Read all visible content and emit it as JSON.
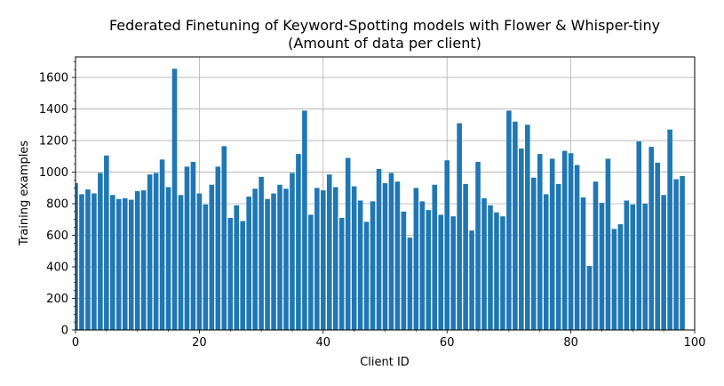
{
  "chart_data": {
    "type": "bar",
    "title_line1": "Federated Finetuning of Keyword-Spotting models with Flower & Whisper-tiny",
    "title_line2": "(Amount of data per client)",
    "xlabel": "Client ID",
    "ylabel": "Training examples",
    "xlim": [
      0,
      100
    ],
    "ylim": [
      0,
      1730
    ],
    "xticks": [
      0,
      20,
      40,
      60,
      80,
      100
    ],
    "yticks": [
      0,
      200,
      400,
      600,
      800,
      1000,
      1200,
      1400,
      1600
    ],
    "grid": true,
    "bar_color": "#1f77b4",
    "x": [
      0,
      1,
      2,
      3,
      4,
      5,
      6,
      7,
      8,
      9,
      10,
      11,
      12,
      13,
      14,
      15,
      16,
      17,
      18,
      19,
      20,
      21,
      22,
      23,
      24,
      25,
      26,
      27,
      28,
      29,
      30,
      31,
      32,
      33,
      34,
      35,
      36,
      37,
      38,
      39,
      40,
      41,
      42,
      43,
      44,
      45,
      46,
      47,
      48,
      49,
      50,
      51,
      52,
      53,
      54,
      55,
      56,
      57,
      58,
      59,
      60,
      61,
      62,
      63,
      64,
      65,
      66,
      67,
      68,
      69,
      70,
      71,
      72,
      73,
      74,
      75,
      76,
      77,
      78,
      79,
      80,
      81,
      82,
      83,
      84,
      85,
      86,
      87,
      88,
      89,
      90,
      91,
      92,
      93,
      94,
      95,
      96,
      97,
      98
    ],
    "values": [
      930,
      860,
      890,
      865,
      995,
      1105,
      855,
      830,
      835,
      825,
      880,
      885,
      985,
      995,
      1080,
      905,
      1655,
      855,
      1035,
      1065,
      865,
      795,
      920,
      1035,
      1165,
      710,
      790,
      690,
      845,
      895,
      970,
      830,
      865,
      920,
      895,
      995,
      1115,
      1390,
      730,
      900,
      885,
      985,
      905,
      710,
      1090,
      910,
      820,
      685,
      815,
      1020,
      930,
      995,
      940,
      750,
      585,
      900,
      815,
      760,
      920,
      730,
      1075,
      720,
      1310,
      925,
      630,
      1065,
      835,
      790,
      745,
      720,
      1390,
      1320,
      1150,
      1300,
      965,
      1115,
      860,
      1085,
      925,
      1135,
      1120,
      1045,
      840,
      405,
      940,
      805,
      1085,
      640,
      670,
      820,
      795,
      1195,
      800,
      1160,
      1060,
      855,
      1270,
      955,
      975
    ]
  }
}
